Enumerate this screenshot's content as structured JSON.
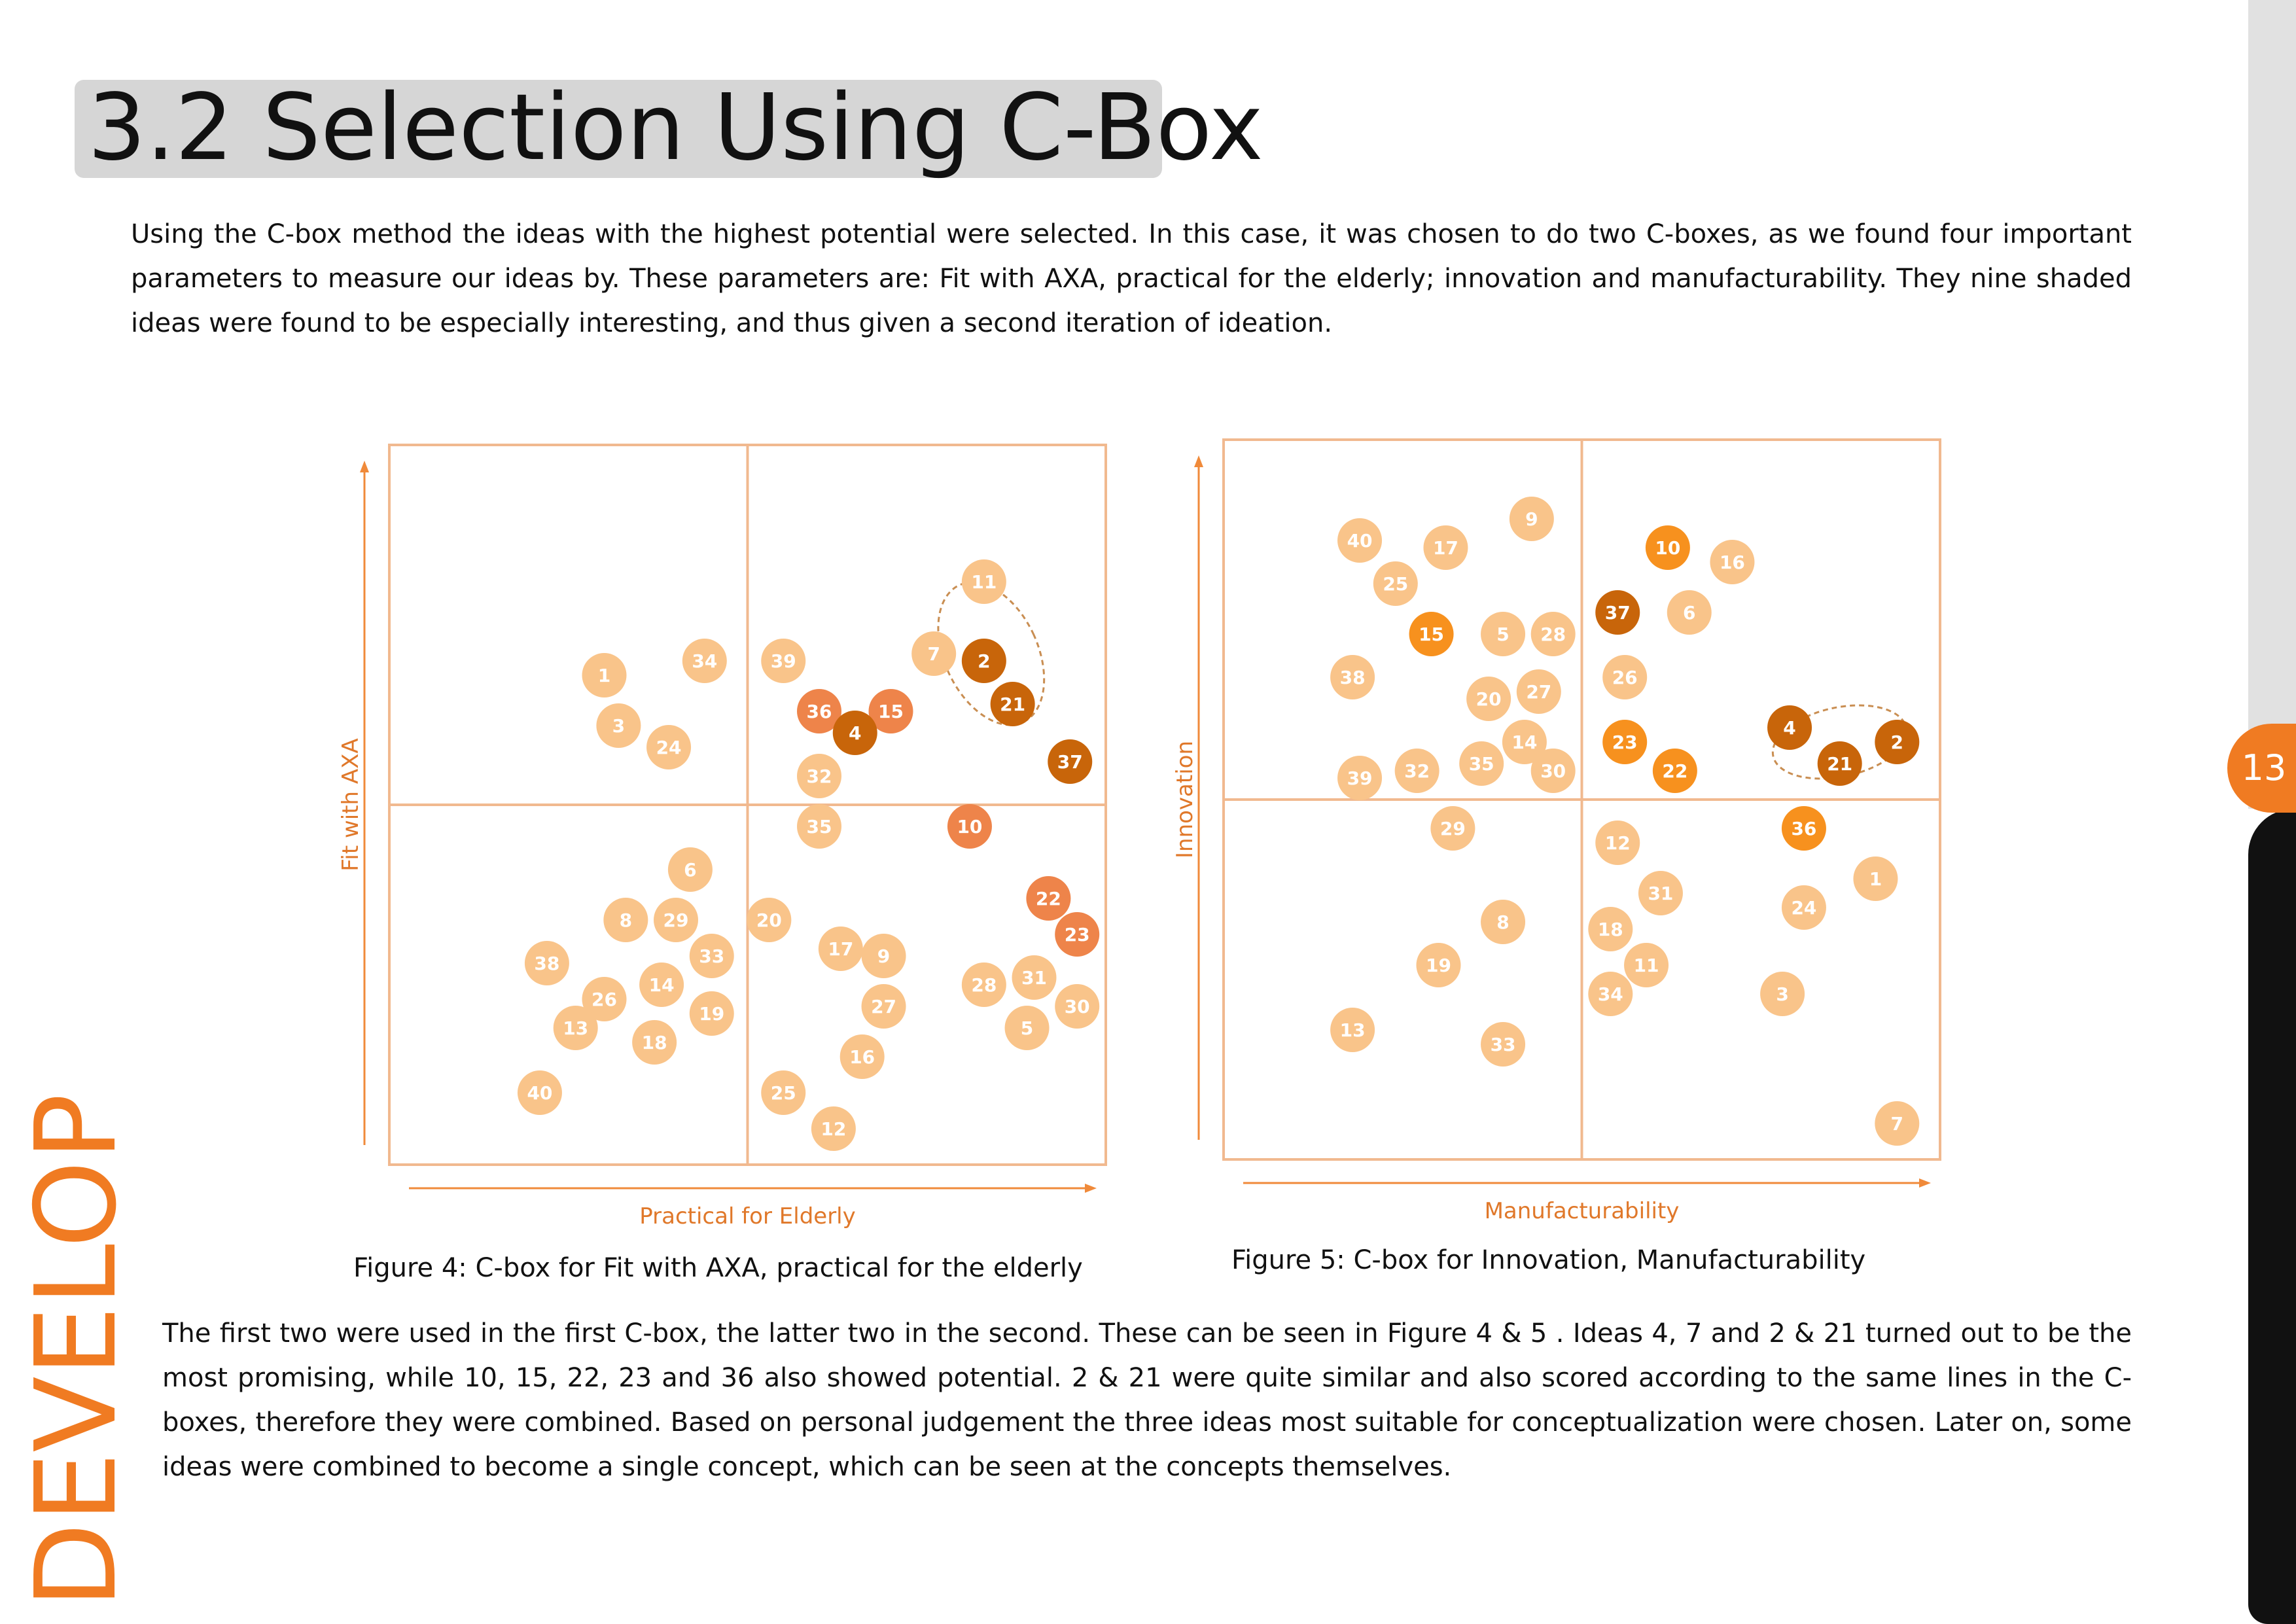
{
  "title": "3.2 Selection Using C-Box",
  "intro_paragraph": "Using the C-box method the ideas with the highest potential were selected. In this case, it was chosen to do two C-boxes, as we found four important parameters to measure our ideas by.  These parameters are: Fit with AXA, practical for the elderly; innovation and manufacturability. They nine shaded ideas were found to be especially interesting, and thus given a second iteration of ideation.",
  "body_paragraph": "The first two were used in the first C-box, the latter two in the second. These can be seen in Figure 4 & 5 . Ideas 4, 7 and 2 & 21 turned out to be the most promising, while 10, 15, 22, 23 and 36 also showed potential. 2 & 21 were quite similar and also scored according to the same lines in the C-boxes, therefore they were combined. Based on personal judgement the three ideas most suitable for conceptualization were chosen. Later on, some ideas were combined to become a single concept, which can be seen at the concepts themselves.",
  "page_number": "13",
  "section_label": "DEVELOP",
  "colors": {
    "accent": "#f07b22",
    "bubble_default": "#f9c48a",
    "bubble_medium": "#ee844a",
    "bubble_orange": "#f7911e",
    "bubble_dark": "#c8650a",
    "grid_line": "#f1b98f"
  },
  "chart_data": [
    {
      "type": "scatter",
      "caption": "Figure 4: C-box for Fit with AXA, practical for the elderly",
      "xlabel": "Practical for Elderly",
      "ylabel": "Fit with AXA",
      "xlim": [
        0,
        100
      ],
      "ylim": [
        0,
        100
      ],
      "quadrant_split": [
        50,
        50
      ],
      "grid": true,
      "group_ellipse": {
        "ideas": [
          "2",
          "21"
        ],
        "cx": 84,
        "cy": 71,
        "rx": 6.5,
        "ry": 10.5,
        "angle": -25
      },
      "points": [
        {
          "label": "11",
          "x": 83,
          "y": 81,
          "tier": "default"
        },
        {
          "label": "34",
          "x": 44,
          "y": 70,
          "tier": "default"
        },
        {
          "label": "39",
          "x": 55,
          "y": 70,
          "tier": "default"
        },
        {
          "label": "7",
          "x": 76,
          "y": 71,
          "tier": "default"
        },
        {
          "label": "2",
          "x": 83,
          "y": 70,
          "tier": "dark"
        },
        {
          "label": "1",
          "x": 30,
          "y": 68,
          "tier": "default"
        },
        {
          "label": "36",
          "x": 60,
          "y": 63,
          "tier": "medium"
        },
        {
          "label": "15",
          "x": 70,
          "y": 63,
          "tier": "medium"
        },
        {
          "label": "21",
          "x": 87,
          "y": 64,
          "tier": "dark"
        },
        {
          "label": "3",
          "x": 32,
          "y": 61,
          "tier": "default"
        },
        {
          "label": "4",
          "x": 65,
          "y": 60,
          "tier": "dark"
        },
        {
          "label": "24",
          "x": 39,
          "y": 58,
          "tier": "default"
        },
        {
          "label": "37",
          "x": 95,
          "y": 56,
          "tier": "dark"
        },
        {
          "label": "32",
          "x": 60,
          "y": 54,
          "tier": "default"
        },
        {
          "label": "35",
          "x": 60,
          "y": 47,
          "tier": "default"
        },
        {
          "label": "10",
          "x": 81,
          "y": 47,
          "tier": "medium"
        },
        {
          "label": "6",
          "x": 42,
          "y": 41,
          "tier": "default"
        },
        {
          "label": "22",
          "x": 92,
          "y": 37,
          "tier": "medium"
        },
        {
          "label": "8",
          "x": 33,
          "y": 34,
          "tier": "default"
        },
        {
          "label": "29",
          "x": 40,
          "y": 34,
          "tier": "default"
        },
        {
          "label": "20",
          "x": 53,
          "y": 34,
          "tier": "default"
        },
        {
          "label": "23",
          "x": 96,
          "y": 32,
          "tier": "medium"
        },
        {
          "label": "17",
          "x": 63,
          "y": 30,
          "tier": "default"
        },
        {
          "label": "9",
          "x": 69,
          "y": 29,
          "tier": "default"
        },
        {
          "label": "33",
          "x": 45,
          "y": 29,
          "tier": "default"
        },
        {
          "label": "38",
          "x": 22,
          "y": 28,
          "tier": "default"
        },
        {
          "label": "28",
          "x": 83,
          "y": 25,
          "tier": "default"
        },
        {
          "label": "31",
          "x": 90,
          "y": 26,
          "tier": "default"
        },
        {
          "label": "14",
          "x": 38,
          "y": 25,
          "tier": "default"
        },
        {
          "label": "26",
          "x": 30,
          "y": 23,
          "tier": "default"
        },
        {
          "label": "27",
          "x": 69,
          "y": 22,
          "tier": "default"
        },
        {
          "label": "19",
          "x": 45,
          "y": 21,
          "tier": "default"
        },
        {
          "label": "30",
          "x": 96,
          "y": 22,
          "tier": "default"
        },
        {
          "label": "5",
          "x": 89,
          "y": 19,
          "tier": "default"
        },
        {
          "label": "13",
          "x": 26,
          "y": 19,
          "tier": "default"
        },
        {
          "label": "18",
          "x": 37,
          "y": 17,
          "tier": "default"
        },
        {
          "label": "16",
          "x": 66,
          "y": 15,
          "tier": "default"
        },
        {
          "label": "40",
          "x": 21,
          "y": 10,
          "tier": "default"
        },
        {
          "label": "25",
          "x": 55,
          "y": 10,
          "tier": "default"
        },
        {
          "label": "12",
          "x": 62,
          "y": 5,
          "tier": "default"
        }
      ]
    },
    {
      "type": "scatter",
      "caption": "Figure 5: C-box for Innovation, Manufacturability",
      "xlabel": "Manufacturability",
      "ylabel": "Innovation",
      "xlim": [
        0,
        100
      ],
      "ylim": [
        0,
        100
      ],
      "quadrant_split": [
        50,
        50
      ],
      "grid": true,
      "group_ellipse": {
        "ideas": [
          "21",
          "2"
        ],
        "cx": 86,
        "cy": 58,
        "rx": 9.5,
        "ry": 4.8,
        "angle": -12
      },
      "points": [
        {
          "label": "9",
          "x": 43,
          "y": 89,
          "tier": "default"
        },
        {
          "label": "40",
          "x": 19,
          "y": 86,
          "tier": "default"
        },
        {
          "label": "17",
          "x": 31,
          "y": 85,
          "tier": "default"
        },
        {
          "label": "10",
          "x": 62,
          "y": 85,
          "tier": "orange"
        },
        {
          "label": "16",
          "x": 71,
          "y": 83,
          "tier": "default"
        },
        {
          "label": "25",
          "x": 24,
          "y": 80,
          "tier": "default"
        },
        {
          "label": "37",
          "x": 55,
          "y": 76,
          "tier": "dark"
        },
        {
          "label": "6",
          "x": 65,
          "y": 76,
          "tier": "default"
        },
        {
          "label": "15",
          "x": 29,
          "y": 73,
          "tier": "orange"
        },
        {
          "label": "5",
          "x": 39,
          "y": 73,
          "tier": "default"
        },
        {
          "label": "28",
          "x": 46,
          "y": 73,
          "tier": "default"
        },
        {
          "label": "38",
          "x": 18,
          "y": 67,
          "tier": "default"
        },
        {
          "label": "26",
          "x": 56,
          "y": 67,
          "tier": "default"
        },
        {
          "label": "27",
          "x": 44,
          "y": 65,
          "tier": "default"
        },
        {
          "label": "20",
          "x": 37,
          "y": 64,
          "tier": "default"
        },
        {
          "label": "4",
          "x": 79,
          "y": 60,
          "tier": "dark"
        },
        {
          "label": "14",
          "x": 42,
          "y": 58,
          "tier": "default"
        },
        {
          "label": "23",
          "x": 56,
          "y": 58,
          "tier": "orange"
        },
        {
          "label": "2",
          "x": 94,
          "y": 58,
          "tier": "dark"
        },
        {
          "label": "35",
          "x": 36,
          "y": 55,
          "tier": "default"
        },
        {
          "label": "21",
          "x": 86,
          "y": 55,
          "tier": "dark"
        },
        {
          "label": "32",
          "x": 27,
          "y": 54,
          "tier": "default"
        },
        {
          "label": "30",
          "x": 46,
          "y": 54,
          "tier": "default"
        },
        {
          "label": "22",
          "x": 63,
          "y": 54,
          "tier": "orange"
        },
        {
          "label": "39",
          "x": 19,
          "y": 53,
          "tier": "default"
        },
        {
          "label": "36",
          "x": 81,
          "y": 46,
          "tier": "orange"
        },
        {
          "label": "29",
          "x": 32,
          "y": 46,
          "tier": "default"
        },
        {
          "label": "12",
          "x": 55,
          "y": 44,
          "tier": "default"
        },
        {
          "label": "1",
          "x": 91,
          "y": 39,
          "tier": "default"
        },
        {
          "label": "31",
          "x": 61,
          "y": 37,
          "tier": "default"
        },
        {
          "label": "24",
          "x": 81,
          "y": 35,
          "tier": "default"
        },
        {
          "label": "8",
          "x": 39,
          "y": 33,
          "tier": "default"
        },
        {
          "label": "18",
          "x": 54,
          "y": 32,
          "tier": "default"
        },
        {
          "label": "19",
          "x": 30,
          "y": 27,
          "tier": "default"
        },
        {
          "label": "11",
          "x": 59,
          "y": 27,
          "tier": "default"
        },
        {
          "label": "34",
          "x": 54,
          "y": 23,
          "tier": "default"
        },
        {
          "label": "3",
          "x": 78,
          "y": 23,
          "tier": "default"
        },
        {
          "label": "13",
          "x": 18,
          "y": 18,
          "tier": "default"
        },
        {
          "label": "33",
          "x": 39,
          "y": 16,
          "tier": "default"
        },
        {
          "label": "7",
          "x": 94,
          "y": 5,
          "tier": "default"
        }
      ]
    }
  ]
}
